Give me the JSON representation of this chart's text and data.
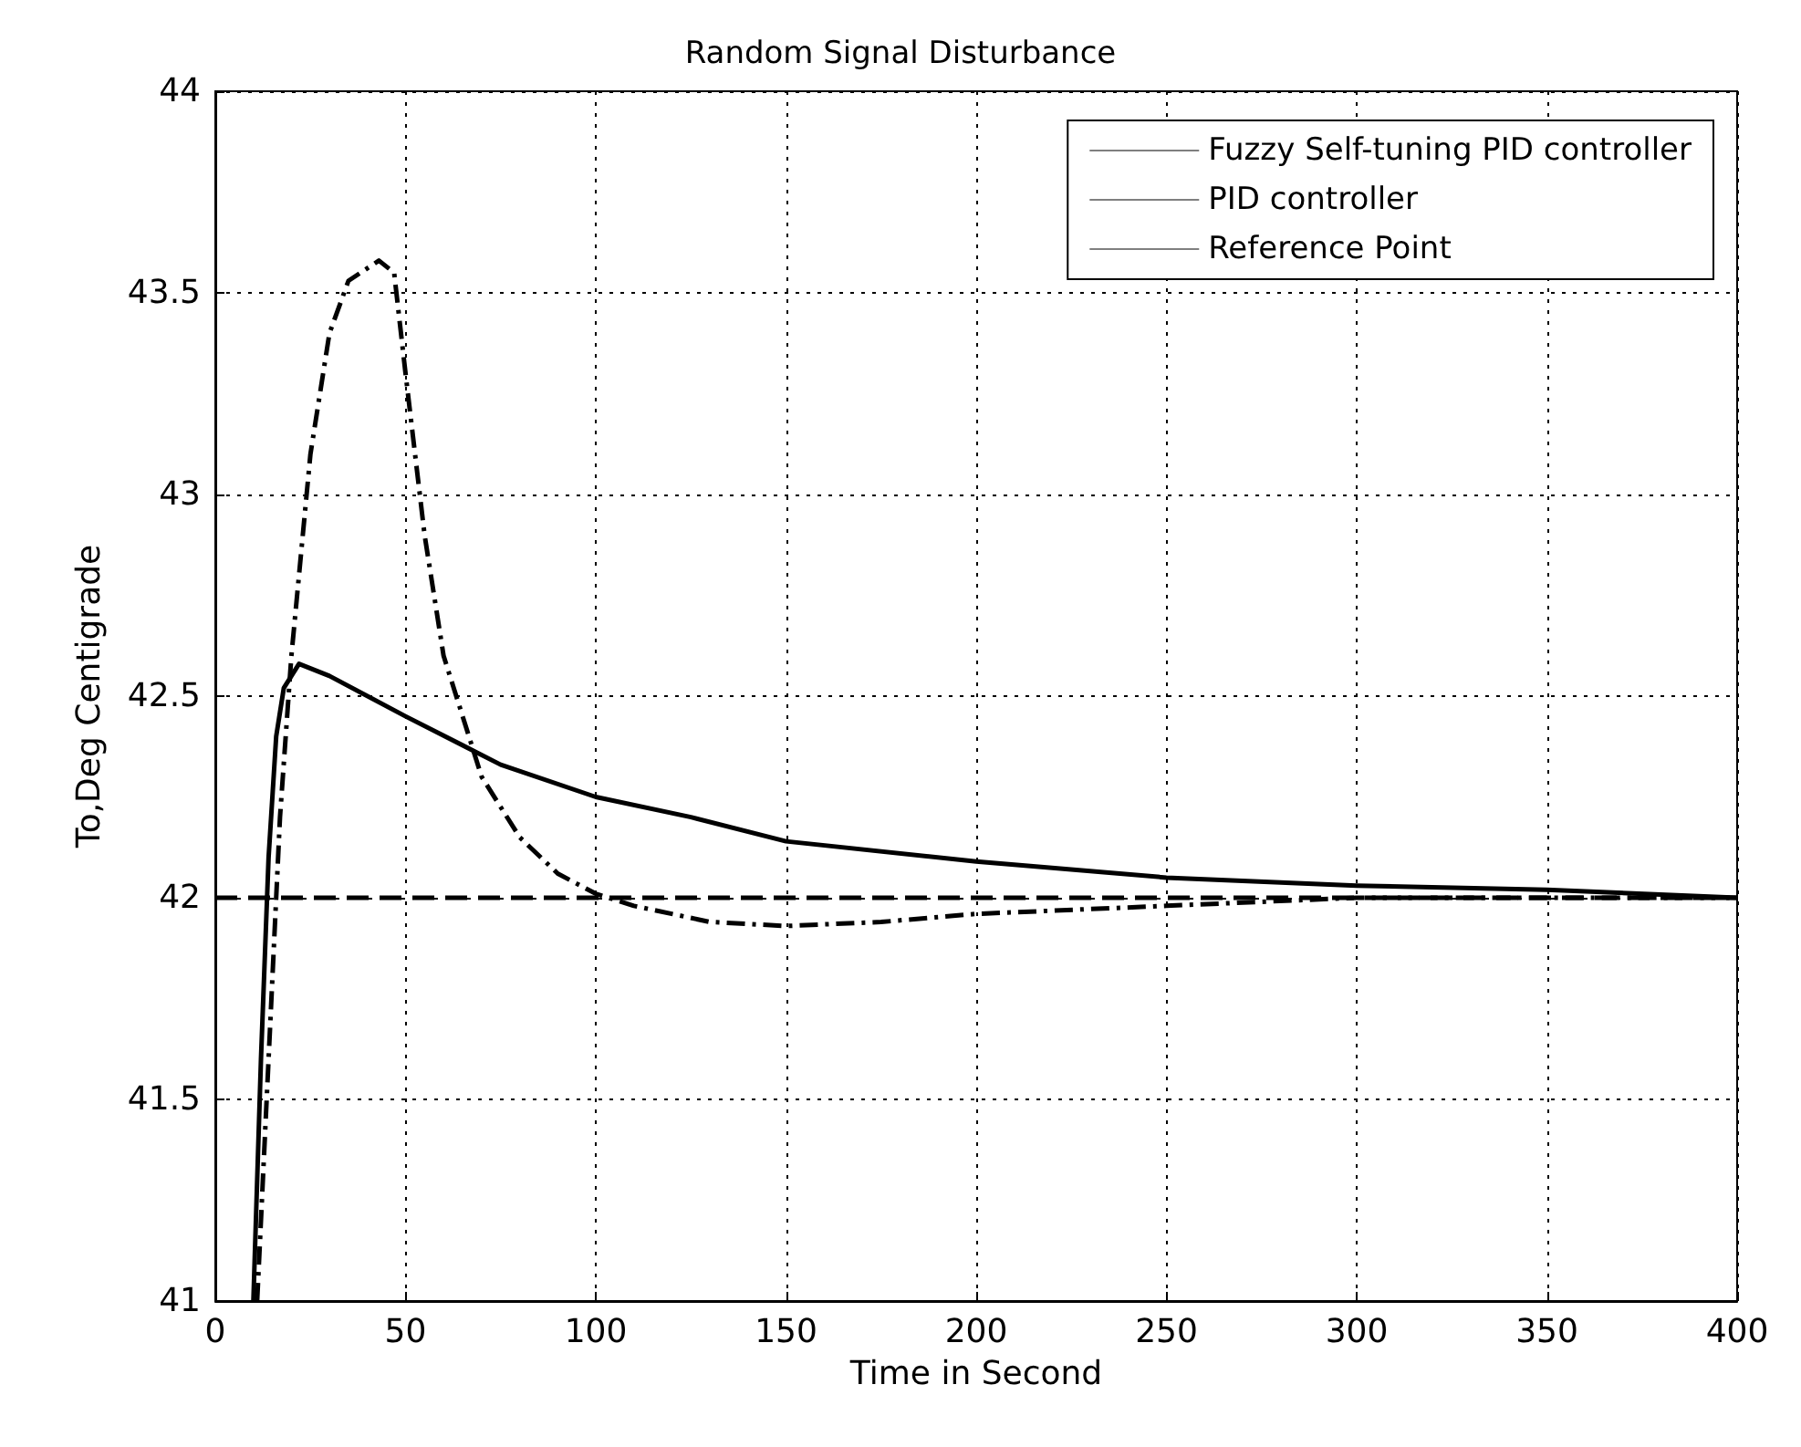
{
  "chart_data": {
    "type": "line",
    "title": "Random Signal Disturbance",
    "xlabel": "Time in Second",
    "ylabel": "To,Deg Centigrade",
    "xlim": [
      0,
      400
    ],
    "xticks": [
      0,
      50,
      100,
      150,
      200,
      250,
      300,
      350,
      400
    ],
    "ylim": [
      41,
      44
    ],
    "yticks": [
      41,
      41.5,
      42,
      42.5,
      43,
      43.5,
      44
    ],
    "grid": true,
    "legend": "top right",
    "series": [
      {
        "name": "Fuzzy Self-tuning PID controller",
        "color": "#000000",
        "line_style": "solid",
        "x": [
          10,
          12,
          14,
          16,
          18,
          22,
          30,
          50,
          75,
          100,
          125,
          150,
          200,
          250,
          300,
          350,
          400
        ],
        "values": [
          41,
          41.6,
          42.1,
          42.4,
          42.52,
          42.58,
          42.55,
          42.45,
          42.33,
          42.25,
          42.2,
          42.14,
          42.09,
          42.05,
          42.03,
          42.02,
          42
        ]
      },
      {
        "name": "PID controller",
        "color": "#000000",
        "line_style": "dashdot",
        "x": [
          11,
          14,
          17,
          20,
          25,
          30,
          35,
          43,
          47,
          50,
          55,
          60,
          70,
          80,
          90,
          100,
          110,
          130,
          150,
          175,
          200,
          250,
          300,
          350,
          400
        ],
        "values": [
          41,
          41.6,
          42.2,
          42.6,
          43.1,
          43.4,
          43.53,
          43.58,
          43.55,
          43.3,
          42.9,
          42.6,
          42.3,
          42.15,
          42.06,
          42.01,
          41.98,
          41.94,
          41.93,
          41.94,
          41.96,
          41.98,
          42,
          42,
          42
        ]
      },
      {
        "name": "Reference Point",
        "color": "#000000",
        "line_style": "dashed",
        "x": [
          0,
          400
        ],
        "values": [
          42,
          42
        ]
      }
    ]
  }
}
